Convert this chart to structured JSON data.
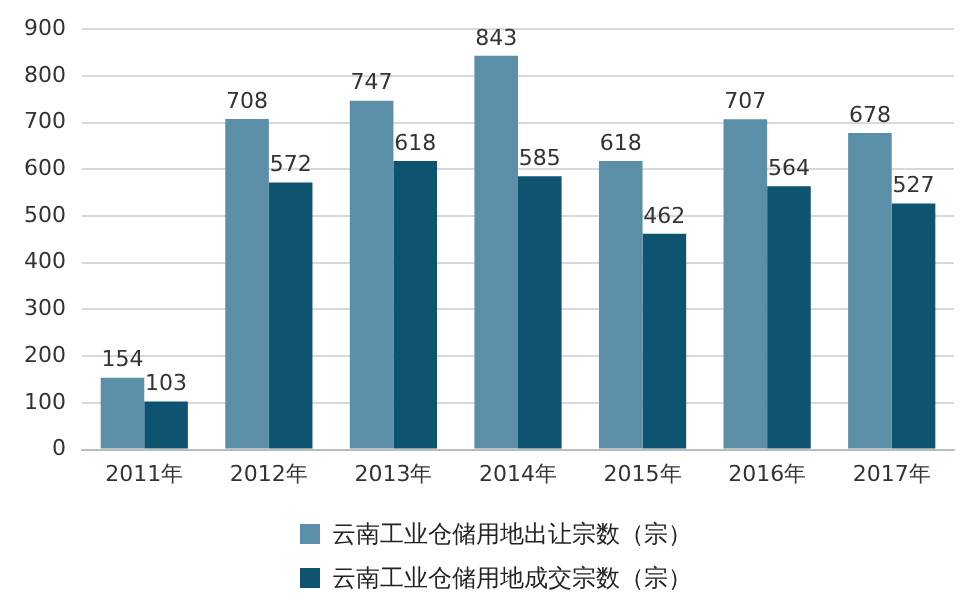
{
  "chart_data": {
    "type": "bar",
    "categories": [
      "2011年",
      "2012年",
      "2013年",
      "2014年",
      "2015年",
      "2016年",
      "2017年"
    ],
    "series": [
      {
        "name": "云南工业仓储用地出让宗数（宗）",
        "color": "#5b8fa8",
        "values": [
          154,
          708,
          747,
          843,
          618,
          707,
          678
        ]
      },
      {
        "name": "云南工业仓储用地成交宗数（宗）",
        "color": "#0e5470",
        "values": [
          103,
          572,
          618,
          585,
          462,
          564,
          527
        ]
      }
    ],
    "ylim": [
      0,
      900
    ],
    "yticks": [
      0,
      100,
      200,
      300,
      400,
      500,
      600,
      700,
      800,
      900
    ],
    "grid": "y",
    "legend": "bottom",
    "data_labels": true
  }
}
